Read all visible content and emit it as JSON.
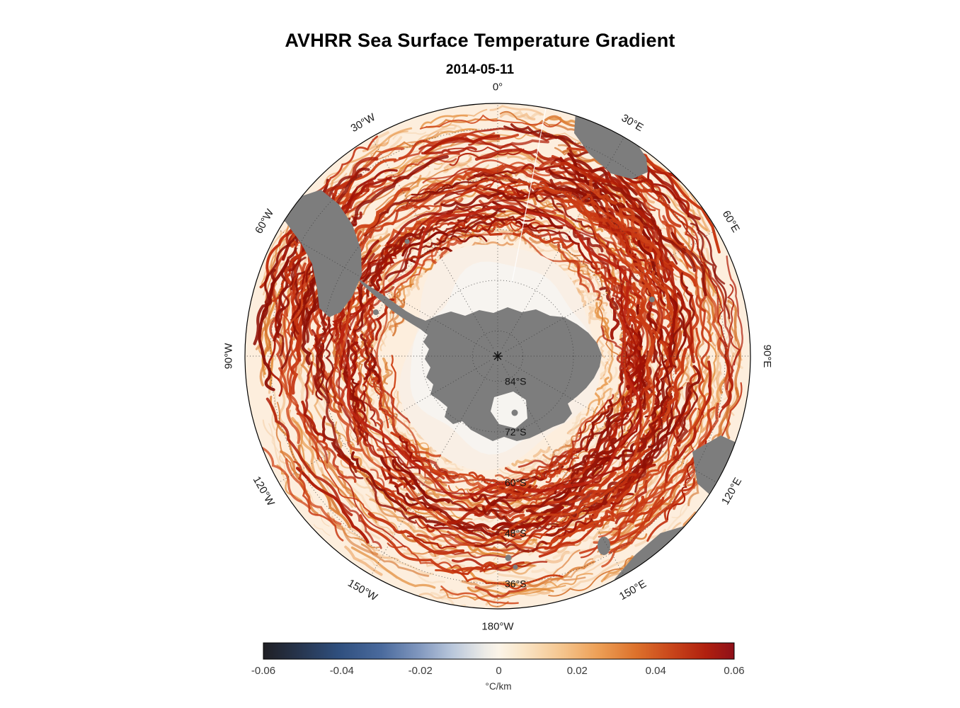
{
  "header": {
    "title": "AVHRR Sea Surface Temperature Gradient",
    "subtitle": "2014-05-11"
  },
  "chart_data": {
    "type": "heatmap",
    "title": "AVHRR Sea Surface Temperature Gradient",
    "date": "2014-05-11",
    "projection": "south-polar-stereographic",
    "region": "Southern Ocean centered on Antarctica",
    "outer_latitude_deg_s": 30,
    "meridian_labels": [
      {
        "az": 0,
        "label": "0°"
      },
      {
        "az": 30,
        "label": "30°E"
      },
      {
        "az": 60,
        "label": "60°E"
      },
      {
        "az": 90,
        "label": "90°E"
      },
      {
        "az": 120,
        "label": "120°E"
      },
      {
        "az": 150,
        "label": "150°E"
      },
      {
        "az": 180,
        "label": "180°W"
      },
      {
        "az": 210,
        "label": "150°W"
      },
      {
        "az": 240,
        "label": "120°W"
      },
      {
        "az": 270,
        "label": "90°W"
      },
      {
        "az": 300,
        "label": "60°W"
      },
      {
        "az": 330,
        "label": "30°W"
      }
    ],
    "parallel_labels": [
      {
        "lat": 84,
        "label": "84°S"
      },
      {
        "lat": 72,
        "label": "72°S"
      },
      {
        "lat": 60,
        "label": "60°S"
      },
      {
        "lat": 48,
        "label": "48°S"
      },
      {
        "lat": 36,
        "label": "36°S"
      }
    ],
    "colorbar": {
      "min": -0.06,
      "max": 0.06,
      "ticks": [
        "-0.06",
        "-0.04",
        "-0.02",
        "0",
        "0.02",
        "0.04",
        "0.06"
      ],
      "tick_values": [
        -0.06,
        -0.04,
        -0.02,
        0,
        0.02,
        0.04,
        0.06
      ],
      "units_label": "°C/km",
      "gradient_stops": [
        {
          "pos": 0.0,
          "color": "#1f1f24"
        },
        {
          "pos": 0.07,
          "color": "#26334a"
        },
        {
          "pos": 0.16,
          "color": "#2f4f7e"
        },
        {
          "pos": 0.25,
          "color": "#4a6a9d"
        },
        {
          "pos": 0.33,
          "color": "#8097be"
        },
        {
          "pos": 0.4,
          "color": "#b8c6db"
        },
        {
          "pos": 0.47,
          "color": "#ecebe7"
        },
        {
          "pos": 0.5,
          "color": "#fbf4e8"
        },
        {
          "pos": 0.55,
          "color": "#fae6c8"
        },
        {
          "pos": 0.63,
          "color": "#f5c791"
        },
        {
          "pos": 0.71,
          "color": "#eda057"
        },
        {
          "pos": 0.79,
          "color": "#dd722c"
        },
        {
          "pos": 0.87,
          "color": "#c8441a"
        },
        {
          "pos": 0.94,
          "color": "#b0200f"
        },
        {
          "pos": 1.0,
          "color": "#8e1019"
        }
      ]
    },
    "field_description": "Gridded SST gradient magnitude field; strong Antarctic Circumpolar Current fronts appear as meandering red filaments in an annulus around the sea-ice zone; background ocean is pale cream with light-orange mesoscale mottling.",
    "ocean_base_color": "#fdeedd",
    "ice_color": "#f7f4f0",
    "land_color": "#7d7d7d",
    "palette": {
      "light": [
        "#f7d8b6",
        "#f4cba1",
        "#f1bd8b",
        "#eeb077"
      ],
      "medium": [
        "#e89a4f",
        "#e08630",
        "#d4702a",
        "#dd7d36"
      ],
      "red": [
        "#cf4418",
        "#c2300f",
        "#b01d08",
        "#c93a14"
      ],
      "dark": [
        "#a01205",
        "#8f0f04",
        "#971608"
      ]
    }
  }
}
